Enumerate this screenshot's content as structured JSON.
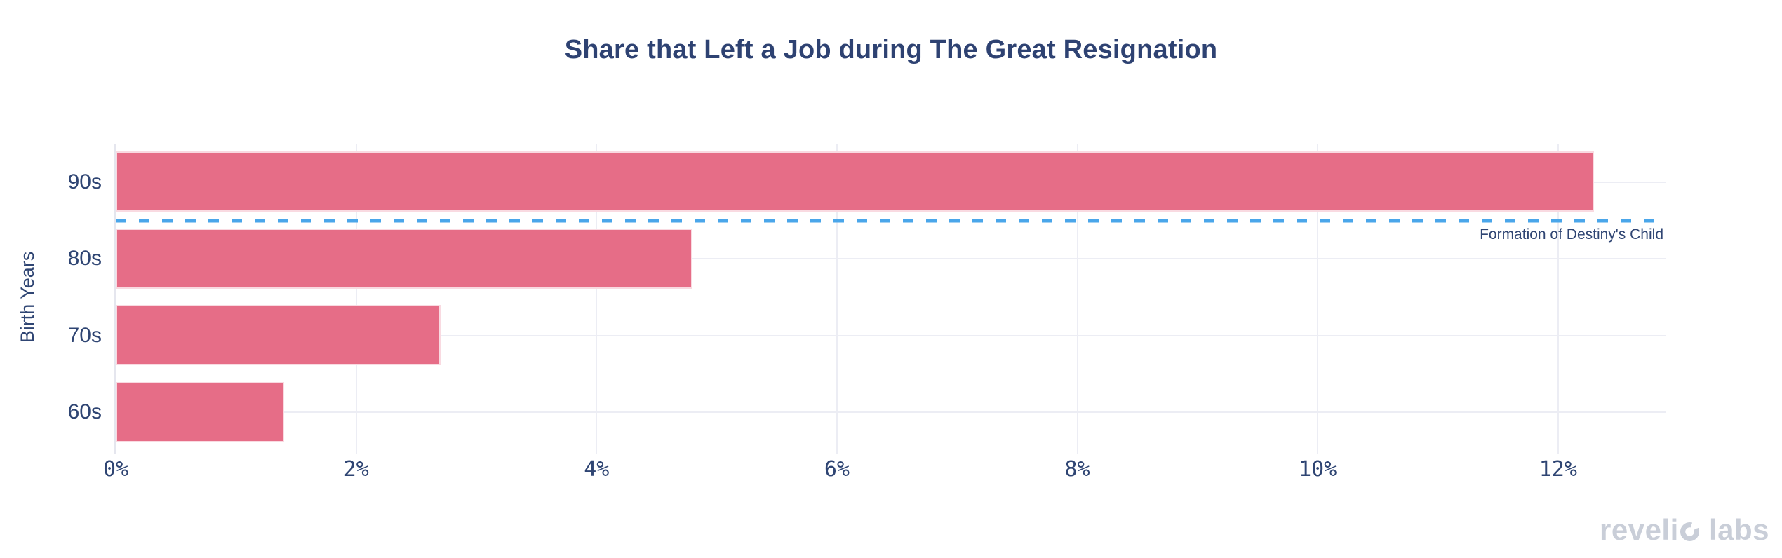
{
  "chart_data": {
    "type": "bar",
    "orientation": "horizontal",
    "title": "Share that Left a Job during The Great Resignation",
    "xlabel": "",
    "ylabel": "Birth Years",
    "categories": [
      "90s",
      "80s",
      "70s",
      "60s"
    ],
    "values": [
      12.3,
      4.8,
      2.7,
      1.4
    ],
    "xlim": [
      0,
      12.9
    ],
    "tick_labels": [
      "0%",
      "2%",
      "4%",
      "6%",
      "8%",
      "10%",
      "12%"
    ],
    "tick_values": [
      0,
      2,
      4,
      6,
      8,
      10,
      12
    ],
    "grid": true,
    "legend": false,
    "annotation": {
      "label": "Formation of Destiny's Child",
      "line_style": "dashed",
      "between": [
        "90s",
        "80s"
      ]
    },
    "colors": {
      "bar": "#e66d87",
      "reference_line": "#4aa6ea",
      "text": "#2f4573",
      "title_text": "#2e4272",
      "gridline": "#ecedf4",
      "axis_line": "#e5e6ee",
      "watermark": "#c9ced8"
    }
  },
  "watermark": {
    "pre": "reveli",
    "post": " labs"
  }
}
